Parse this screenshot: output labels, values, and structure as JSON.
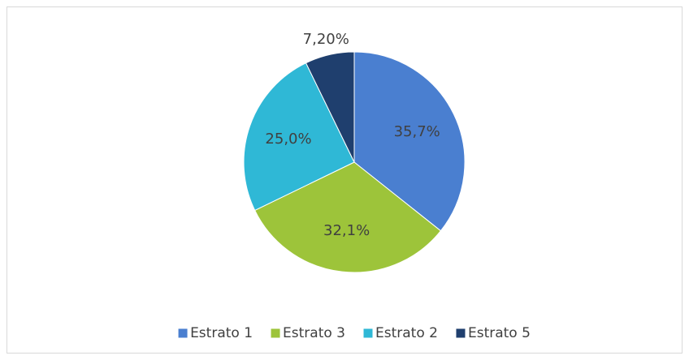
{
  "chart_data": {
    "type": "pie",
    "categories": [
      "Estrato 1",
      "Estrato 3",
      "Estrato 2",
      "Estrato 5"
    ],
    "values": [
      35.7,
      32.1,
      25.0,
      7.2
    ],
    "value_labels": [
      "35,7%",
      "32,1%",
      "25,0%",
      "7,20%"
    ],
    "colors": [
      "#4a7fd0",
      "#9dc43a",
      "#2fb8d6",
      "#1f3f6e"
    ],
    "legend": "bottom"
  }
}
